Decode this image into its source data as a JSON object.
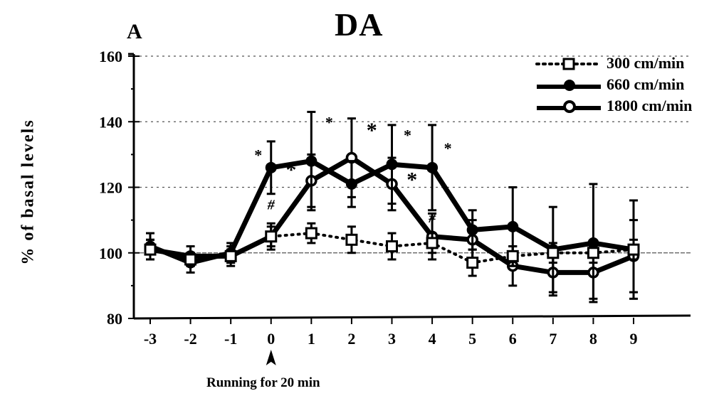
{
  "panel_label": "A",
  "title": "DA",
  "y_axis_label": "% of basal levels",
  "x_annotation": "Running for 20 min",
  "x_annotation_marker": "▲",
  "legend": [
    {
      "label": "300 cm/min",
      "marker": "open-square",
      "line": "dotted"
    },
    {
      "label": "660 cm/min",
      "marker": "filled-circle",
      "line": "solid"
    },
    {
      "label": "1800 cm/min",
      "marker": "open-circle",
      "line": "solid"
    }
  ],
  "chart_data": {
    "type": "line",
    "title": "DA",
    "xlabel": "",
    "ylabel": "% of basal levels",
    "x": [
      -3,
      -2,
      -1,
      0,
      1,
      2,
      3,
      4,
      5,
      6,
      7,
      8,
      9
    ],
    "xticks": [
      "-3",
      "-2",
      "-1",
      "0",
      "1",
      "2",
      "3",
      "4",
      "5",
      "6",
      "7",
      "8",
      "9"
    ],
    "yticks": [
      80,
      100,
      120,
      140,
      160
    ],
    "ylim": [
      80,
      160
    ],
    "grid": "horizontal dotted at 100, 120, 140 (faint)",
    "legend_position": "upper right",
    "annotations": [
      {
        "text": "Running for 20 min",
        "x": 0,
        "marker": "arrowhead up below x=0"
      },
      {
        "text": "*",
        "series": "660 cm/min",
        "x": 0
      },
      {
        "text": "*",
        "series": "660 cm/min",
        "x": 1
      },
      {
        "text": "*",
        "series": "660 cm/min",
        "x": 3
      },
      {
        "text": "*",
        "series": "660 cm/min",
        "x": 4
      },
      {
        "text": "*",
        "series": "1800 cm/min",
        "x": 0.5
      },
      {
        "text": "*",
        "series": "1800 cm/min",
        "x": 2.5
      },
      {
        "text": "*",
        "series": "1800 cm/min",
        "x": 3.5
      },
      {
        "text": "#",
        "series": "300 cm/min",
        "x": 0
      },
      {
        "text": "#",
        "series": "300 cm/min",
        "x": 4
      }
    ],
    "series": [
      {
        "name": "300 cm/min",
        "marker": "open-square",
        "line": "dotted",
        "values": [
          101,
          98,
          99,
          105,
          106,
          104,
          102,
          103,
          97,
          99,
          100,
          100,
          101
        ],
        "error": [
          3,
          2,
          2,
          3,
          3,
          4,
          4,
          3,
          4,
          3,
          3,
          3,
          3
        ]
      },
      {
        "name": "660 cm/min",
        "marker": "filled-circle",
        "line": "solid",
        "values": [
          102,
          97,
          100,
          126,
          128,
          121,
          127,
          126,
          107,
          108,
          101,
          103,
          101
        ],
        "error": [
          4,
          3,
          3,
          8,
          15,
          7,
          12,
          13,
          6,
          12,
          13,
          18,
          15
        ]
      },
      {
        "name": "1800 cm/min",
        "marker": "open-circle",
        "line": "solid",
        "values": [
          101,
          99,
          99,
          105,
          122,
          129,
          121,
          105,
          104,
          96,
          94,
          94,
          99
        ],
        "error": [
          3,
          3,
          3,
          4,
          8,
          12,
          8,
          7,
          6,
          6,
          7,
          8,
          11
        ]
      }
    ]
  }
}
